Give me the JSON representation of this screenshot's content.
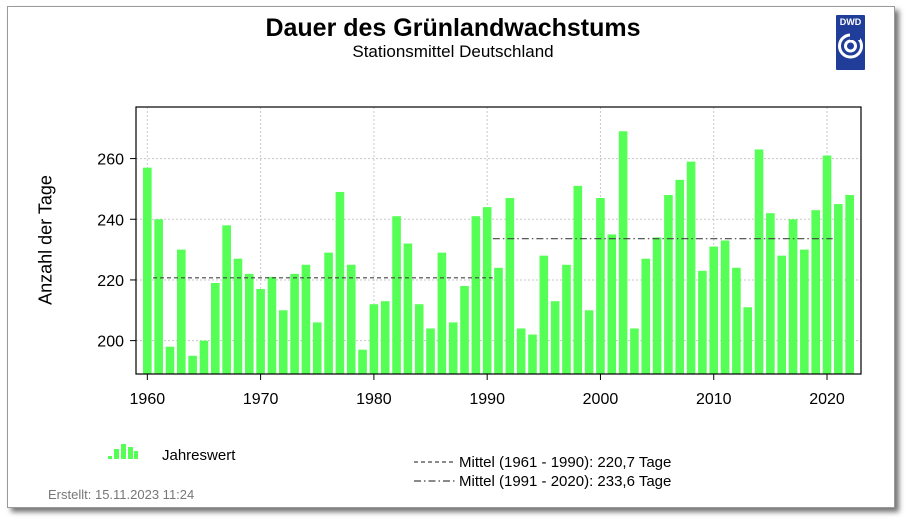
{
  "header": {
    "title": "Dauer des Grünlandwachstums",
    "subtitle": "Stationsmittel Deutschland",
    "logo_text": "DWD"
  },
  "footer": {
    "created_label": "Erstellt:",
    "created_value": "15.11.2023 11:24"
  },
  "legend": {
    "annual": "Jahreswert",
    "mean1": "Mittel (1961 - 1990): 220,7 Tage",
    "mean2": "Mittel (1991 - 2020): 233,6 Tage"
  },
  "colors": {
    "bar": "#55ff55",
    "grid": "#c8c8c8",
    "mean_line": "#444444",
    "logo": "#1f3d99"
  },
  "chart_data": {
    "type": "bar",
    "title": "Dauer des Grünlandwachstums",
    "subtitle": "Stationsmittel Deutschland",
    "ylabel": "Anzahl der Tage",
    "xlabel": "",
    "ylim": [
      189,
      277
    ],
    "xlim": [
      1959,
      2023
    ],
    "x_ticks": [
      1960,
      1970,
      1980,
      1990,
      2000,
      2010,
      2020
    ],
    "y_ticks": [
      200,
      220,
      240,
      260
    ],
    "grid": true,
    "years": [
      1960,
      1961,
      1962,
      1963,
      1964,
      1965,
      1966,
      1967,
      1968,
      1969,
      1970,
      1971,
      1972,
      1973,
      1974,
      1975,
      1976,
      1977,
      1978,
      1979,
      1980,
      1981,
      1982,
      1983,
      1984,
      1985,
      1986,
      1987,
      1988,
      1989,
      1990,
      1991,
      1992,
      1993,
      1994,
      1995,
      1996,
      1997,
      1998,
      1999,
      2000,
      2001,
      2002,
      2003,
      2004,
      2005,
      2006,
      2007,
      2008,
      2009,
      2010,
      2011,
      2012,
      2013,
      2014,
      2015,
      2016,
      2017,
      2018,
      2019,
      2020,
      2021,
      2022
    ],
    "values": [
      257,
      240,
      198,
      230,
      195,
      200,
      219,
      238,
      227,
      222,
      217,
      221,
      210,
      222,
      225,
      206,
      229,
      249,
      225,
      197,
      212,
      213,
      241,
      232,
      212,
      204,
      229,
      206,
      218,
      241,
      244,
      224,
      247,
      204,
      202,
      228,
      213,
      225,
      251,
      210,
      247,
      235,
      269,
      204,
      227,
      234,
      248,
      253,
      259,
      223,
      231,
      233,
      224,
      211,
      263,
      242,
      228,
      240,
      230,
      243,
      261,
      245,
      248
    ],
    "means": [
      {
        "label": "Mittel (1961 - 1990): 220,7 Tage",
        "value": 220.7,
        "from": 1961,
        "to": 1990,
        "style": "dashed"
      },
      {
        "label": "Mittel (1991 - 2020): 233,6 Tage",
        "value": 233.6,
        "from": 1991,
        "to": 2020,
        "style": "dashdot"
      }
    ]
  }
}
